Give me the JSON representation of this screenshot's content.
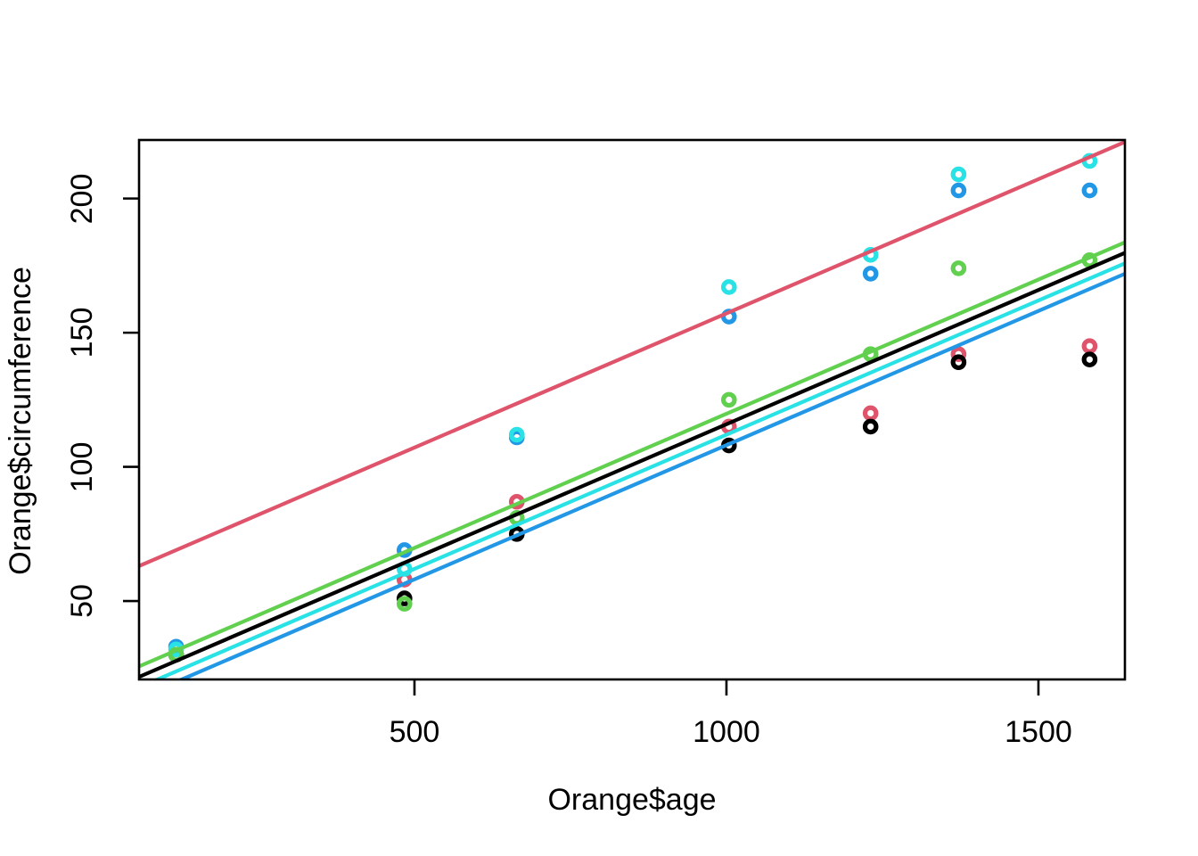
{
  "chart_data": {
    "type": "scatter",
    "title": "",
    "xlabel": "Orange$age",
    "ylabel": "Orange$circumference",
    "background": "#ffffff",
    "axis_color": "#000000",
    "grid": false,
    "legend": null,
    "xlim": [
      58.6,
      1638.6
    ],
    "ylim": [
      20.8,
      221.8
    ],
    "x_ticks": [
      "500",
      "1000",
      "1500"
    ],
    "x_tick_values": [
      500,
      1000,
      1500
    ],
    "y_ticks": [
      "50",
      "100",
      "150",
      "200"
    ],
    "y_tick_values": [
      50,
      100,
      150,
      200
    ],
    "x": [
      118,
      484,
      664,
      1004,
      1231,
      1372,
      1582
    ],
    "series": [
      {
        "name": "red-series",
        "color": "#DF536B",
        "values": [
          30,
          58,
          87,
          115,
          120,
          142,
          145
        ]
      },
      {
        "name": "blue-series",
        "color": "#2297E6",
        "values": [
          33,
          69,
          111,
          156,
          172,
          203,
          203
        ]
      },
      {
        "name": "black-series",
        "color": "#000000",
        "values": [
          30,
          51,
          75,
          108,
          115,
          139,
          140
        ]
      },
      {
        "name": "cyan-series",
        "color": "#28E2E5",
        "values": [
          32,
          62,
          112,
          167,
          179,
          209,
          214
        ]
      },
      {
        "name": "green-series",
        "color": "#61D04F",
        "values": [
          30,
          49,
          81,
          125,
          142,
          174,
          177
        ]
      }
    ],
    "lines": [
      {
        "name": "black-fit-line",
        "color": "#000000",
        "intercept": 15.9,
        "slope": 0.1
      },
      {
        "name": "red-fit-line",
        "color": "#DF536B",
        "intercept": 57.2,
        "slope": 0.1
      },
      {
        "name": "green-fit-line",
        "color": "#61D04F",
        "intercept": 19.8,
        "slope": 0.1
      },
      {
        "name": "blue-fit-line",
        "color": "#2297E6",
        "intercept": 8.1,
        "slope": 0.1
      },
      {
        "name": "cyan-fit-line",
        "color": "#28E2E5",
        "intercept": 12.0,
        "slope": 0.1
      }
    ],
    "marker": {
      "shape": "open-circle",
      "radius": 6.2,
      "stroke_width": 5.2
    },
    "line_width": 4.2
  }
}
